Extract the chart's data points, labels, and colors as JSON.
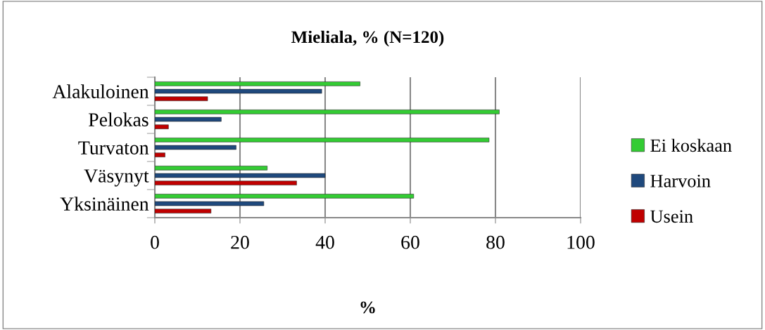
{
  "chart_data": {
    "type": "bar",
    "orientation": "horizontal",
    "title": "Mieliala, % (N=120)",
    "xlabel": "%",
    "categories": [
      "Alakuloinen",
      "Pelokas",
      "Turvaton",
      "Väsynyt",
      "Yksinäinen"
    ],
    "series": [
      {
        "name": "Ei koskaan",
        "color": "#33cc33",
        "values": [
          48.2,
          80.9,
          78.5,
          26.4,
          60.8
        ]
      },
      {
        "name": "Harvoin",
        "color": "#1f497d",
        "values": [
          39.2,
          15.6,
          19.1,
          40,
          25.6
        ]
      },
      {
        "name": "Usein",
        "color": "#c00000",
        "values": [
          12.4,
          3.2,
          2.4,
          33.3,
          13.2
        ]
      }
    ],
    "xlim": [
      0,
      100
    ],
    "xticks": [
      0,
      20,
      40,
      60,
      80,
      100
    ],
    "grid": "x",
    "legend": "right"
  }
}
